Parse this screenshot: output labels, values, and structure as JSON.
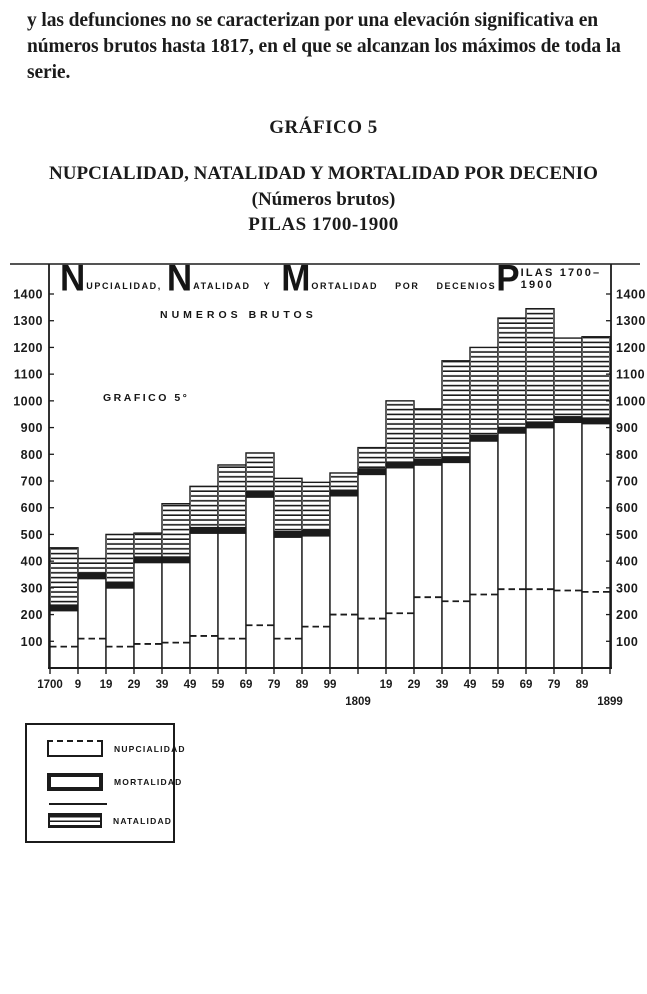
{
  "page": {
    "paragraph": "y las defunciones no se caracterizan por una elevación significativa en números brutos hasta 1817, en el que se alcanzan los máximos de toda la serie.",
    "figure_label": "GRÁFICO 5",
    "figure_title": "NUPCIALIDAD, NATALIDAD Y MORTALIDAD POR DECENIO",
    "figure_subtitle": "(Números brutos)",
    "figure_range": "PILAS 1700-1900"
  },
  "chart_header": {
    "segments": [
      {
        "big": "N",
        "rest": "UPCIALIDAD,"
      },
      {
        "big": "N",
        "rest": "ATALIDAD"
      },
      {
        "big": "",
        "rest": "Y"
      },
      {
        "big": "M",
        "rest": "ORTALIDAD"
      },
      {
        "big": "",
        "rest": "POR"
      },
      {
        "big": "",
        "rest": "DECENIOS"
      }
    ],
    "pilas": {
      "big": "P",
      "rest": "ILAS 1700–1900"
    },
    "line2": "NUMEROS BRUTOS",
    "inner_label": "GRAFICO 5°"
  },
  "chart_data": {
    "type": "bar",
    "title": "NUPCIALIDAD, NATALIDAD Y MORTALIDAD POR DECENIOS",
    "subtitle": "NUMEROS BRUTOS",
    "place_range": "PILAS 1700-1900",
    "categories": [
      "1700-09",
      "1710-19",
      "1720-29",
      "1730-39",
      "1740-49",
      "1750-59",
      "1760-69",
      "1770-79",
      "1780-89",
      "1790-99",
      "1800-09",
      "1810-19",
      "1820-29",
      "1830-39",
      "1840-49",
      "1850-59",
      "1860-69",
      "1870-79",
      "1880-89",
      "1890-99"
    ],
    "series": [
      {
        "name": "NATALIDAD",
        "style": "hatched-bar",
        "values": [
          450,
          410,
          500,
          505,
          615,
          680,
          760,
          805,
          710,
          695,
          730,
          825,
          1000,
          970,
          1150,
          1200,
          1310,
          1345,
          1235,
          1240
        ]
      },
      {
        "name": "MORTALIDAD",
        "style": "black-band",
        "values": [
          225,
          345,
          310,
          405,
          405,
          515,
          515,
          650,
          500,
          505,
          655,
          735,
          760,
          770,
          780,
          860,
          890,
          910,
          930,
          925
        ]
      },
      {
        "name": "NUPCIALIDAD",
        "style": "dashed-line",
        "values": [
          80,
          110,
          80,
          90,
          95,
          120,
          110,
          160,
          110,
          155,
          200,
          185,
          205,
          265,
          250,
          275,
          295,
          295,
          290,
          285
        ]
      }
    ],
    "ylim": [
      0,
      1400
    ],
    "yticks": [
      100,
      200,
      300,
      400,
      500,
      600,
      700,
      800,
      900,
      1000,
      1100,
      1200,
      1300,
      1400
    ],
    "x_axis_labels": [
      "1700",
      "9",
      "19",
      "29",
      "39",
      "49",
      "59",
      "69",
      "79",
      "89",
      "99",
      "1809",
      "19",
      "29",
      "39",
      "49",
      "59",
      "69",
      "79",
      "89",
      "1899"
    ],
    "x_axis_lower_row_indices": [
      11,
      20
    ],
    "grid": false,
    "legend_position": "below-left",
    "colors": {
      "ink": "#1b1b1b",
      "paper": "#ffffff"
    }
  },
  "legend": {
    "items": [
      {
        "label": "NUPCIALIDAD",
        "swatch": "dashed-top-box"
      },
      {
        "label": "MORTALIDAD",
        "swatch": "thick-border-box"
      },
      {
        "label": "",
        "swatch": "thin-line"
      },
      {
        "label": "NATALIDAD",
        "swatch": "hatched-box"
      }
    ]
  }
}
